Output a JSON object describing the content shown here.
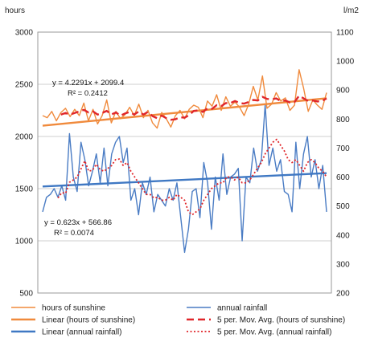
{
  "chart_data": {
    "type": "line",
    "title": "",
    "left_axis": {
      "unit": "hours",
      "range": [
        500,
        3000
      ],
      "ticks": [
        "3000",
        "2500",
        "2000",
        "1500",
        "1000",
        "500"
      ]
    },
    "right_axis": {
      "unit": "l/m2",
      "range": [
        200,
        1100
      ],
      "ticks": [
        "1100",
        "1000",
        "900",
        "800",
        "700",
        "600",
        "500",
        "400",
        "300",
        "200"
      ]
    },
    "grid": true,
    "legend_placement": "bottom",
    "legend": [
      {
        "label": "hours of sunshine",
        "color": "#f08a3c",
        "style": "solid",
        "width": 1.4
      },
      {
        "label": "annual rainfall",
        "color": "#4a7cc4",
        "style": "solid",
        "width": 1.4
      },
      {
        "label": "Linear (hours of sunshine)",
        "color": "#f08a3c",
        "style": "solid",
        "width": 2.4
      },
      {
        "label": "5 per. Mov. Avg. (hours of sunshine)",
        "color": "#e0262a",
        "style": "dashed",
        "width": 2.4
      },
      {
        "label": "Linear (annual rainfall)",
        "color": "#3f78c3",
        "style": "solid",
        "width": 2.4
      },
      {
        "label": "5 per. Mov. Avg. (annual rainfall)",
        "color": "#e0262a",
        "style": "dotted",
        "width": 1.8
      }
    ],
    "annotations": {
      "sunshine_eq": "y = 4.2291x + 2099.4",
      "sunshine_r2": "R² = 0.2412",
      "rainfall_eq": "y = 0.623x + 566.86",
      "rainfall_r2": "R² = 0.0074"
    },
    "trend": {
      "sunshine": {
        "slope": 4.2291,
        "intercept": 2099.4
      },
      "rainfall": {
        "slope": 0.623,
        "intercept": 566.86
      }
    },
    "series": [
      {
        "name": "hours of sunshine",
        "axis": "left",
        "values": [
          2200,
          2180,
          2240,
          2150,
          2230,
          2270,
          2190,
          2260,
          2200,
          2320,
          2150,
          2260,
          2120,
          2200,
          2350,
          2130,
          2240,
          2170,
          2210,
          2280,
          2200,
          2310,
          2180,
          2250,
          2130,
          2080,
          2230,
          2170,
          2090,
          2200,
          2250,
          2170,
          2260,
          2300,
          2280,
          2180,
          2340,
          2290,
          2400,
          2250,
          2380,
          2290,
          2330,
          2280,
          2200,
          2310,
          2480,
          2350,
          2580,
          2270,
          2310,
          2420,
          2340,
          2370,
          2250,
          2300,
          2640,
          2460,
          2240,
          2350,
          2300,
          2260,
          2420
        ]
      },
      {
        "name": "annual rainfall",
        "axis": "right",
        "values": [
          480,
          530,
          540,
          560,
          530,
          570,
          520,
          750,
          600,
          550,
          720,
          660,
          570,
          620,
          680,
          580,
          700,
          570,
          680,
          720,
          740,
          650,
          700,
          520,
          560,
          470,
          580,
          540,
          600,
          480,
          540,
          520,
          500,
          560,
          520,
          580,
          460,
          340,
          420,
          550,
          560,
          460,
          650,
          580,
          420,
          600,
          520,
          680,
          540,
          600,
          610,
          630,
          380,
          600,
          580,
          700,
          620,
          660,
          850,
          640,
          700,
          620,
          660,
          550,
          540,
          480,
          720,
          560,
          680,
          740,
          600,
          660,
          560,
          640,
          480
        ]
      },
      {
        "name": "5 per. Mov. Avg. (hours of sunshine)",
        "axis": "left",
        "values": [
          null,
          null,
          null,
          null,
          2210,
          2225,
          2210,
          2225,
          2240,
          2255,
          2230,
          2240,
          2210,
          2225,
          2245,
          2210,
          2230,
          2200,
          2220,
          2235,
          2210,
          2240,
          2210,
          2235,
          2195,
          2175,
          2200,
          2175,
          2160,
          2165,
          2185,
          2180,
          2205,
          2245,
          2250,
          2235,
          2270,
          2265,
          2300,
          2290,
          2320,
          2320,
          2340,
          2320,
          2315,
          2330,
          2350,
          2345,
          2380,
          2360,
          2355,
          2365,
          2340,
          2345,
          2325,
          2330,
          2390,
          2365,
          2340,
          2345,
          2335,
          2340,
          2365
        ]
      },
      {
        "name": "5 per. Mov. Avg. (annual rainfall)",
        "axis": "right",
        "values": [
          null,
          null,
          null,
          null,
          528,
          546,
          544,
          582,
          590,
          600,
          628,
          656,
          620,
          624,
          644,
          626,
          620,
          630,
          640,
          660,
          662,
          640,
          650,
          620,
          600,
          580,
          560,
          540,
          540,
          528,
          530,
          520,
          520,
          530,
          520,
          540,
          530,
          520,
          480,
          470,
          480,
          490,
          520,
          540,
          560,
          570,
          580,
          580,
          600,
          600,
          590,
          600,
          580,
          580,
          590,
          610,
          630,
          650,
          680,
          700,
          720,
          730,
          710,
          690,
          660,
          650,
          660,
          640,
          620,
          650,
          660,
          650,
          630,
          620,
          600
        ]
      }
    ]
  }
}
